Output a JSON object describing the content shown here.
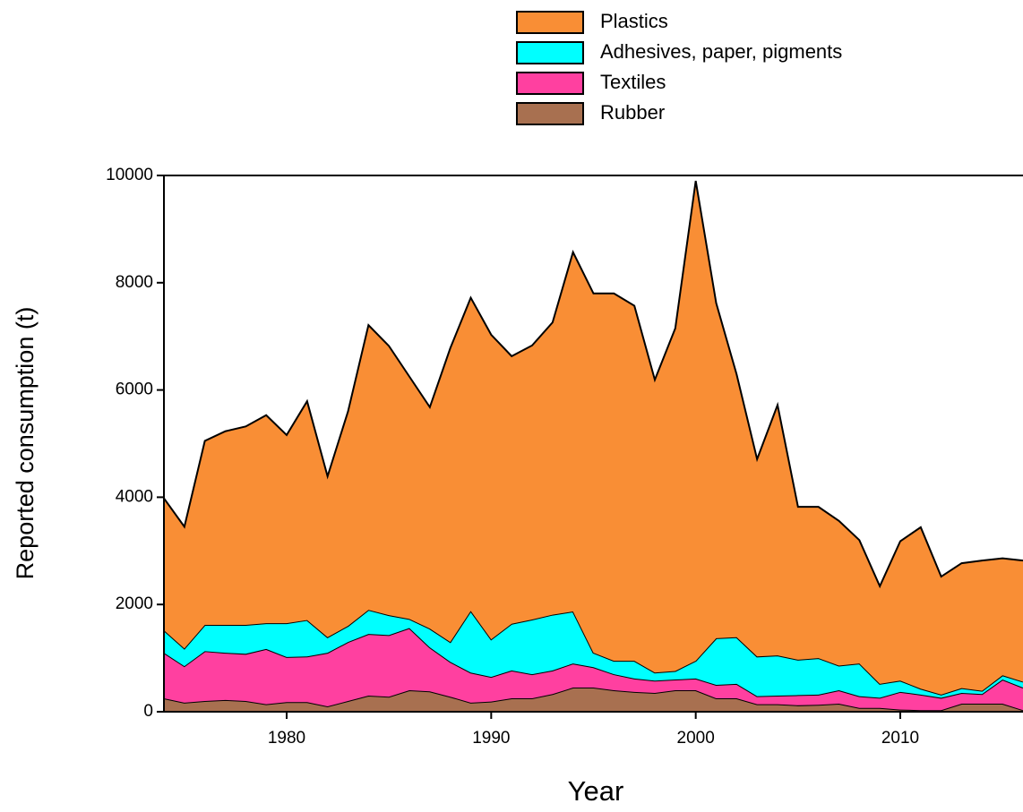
{
  "chart_data": {
    "type": "stacked_area",
    "x_label": "Year",
    "y_label": "Reported consumption (t)",
    "x": [
      1974,
      1975,
      1976,
      1977,
      1978,
      1979,
      1980,
      1981,
      1982,
      1983,
      1984,
      1985,
      1986,
      1987,
      1988,
      1989,
      1990,
      1991,
      1992,
      1993,
      1994,
      1995,
      1996,
      1997,
      1998,
      1999,
      2000,
      2001,
      2002,
      2003,
      2004,
      2005,
      2006,
      2007,
      2008,
      2009,
      2010,
      2011,
      2012,
      2013,
      2014,
      2015,
      2016
    ],
    "series": [
      {
        "name": "Plastics",
        "color": "#f98e35",
        "values": [
          2460,
          2270,
          3430,
          3610,
          3700,
          3880,
          3510,
          4080,
          3000,
          4000,
          5310,
          5020,
          4520,
          4130,
          5480,
          5840,
          5680,
          4990,
          5110,
          5450,
          6700,
          6700,
          6850,
          6620,
          5460,
          6390,
          8950,
          6250,
          4900,
          3680,
          4670,
          2850,
          2820,
          2700,
          2300,
          1820,
          2600,
          3010,
          2200,
          2330,
          2430,
          2180,
          2260
        ]
      },
      {
        "name": "Adhesives, paper, pigments",
        "color": "#00ffff",
        "values": [
          420,
          330,
          490,
          520,
          540,
          480,
          630,
          680,
          290,
          300,
          450,
          370,
          170,
          350,
          370,
          1150,
          700,
          870,
          1020,
          1040,
          970,
          270,
          250,
          330,
          150,
          160,
          330,
          870,
          870,
          740,
          750,
          660,
          680,
          460,
          610,
          260,
          210,
          110,
          60,
          90,
          60,
          80,
          110
        ]
      },
      {
        "name": "Textiles",
        "color": "#ff40a0",
        "values": [
          850,
          680,
          930,
          880,
          880,
          1030,
          840,
          850,
          1000,
          1100,
          1150,
          1150,
          1160,
          820,
          650,
          560,
          460,
          520,
          450,
          440,
          450,
          380,
          300,
          250,
          230,
          200,
          220,
          250,
          270,
          150,
          160,
          190,
          190,
          250,
          220,
          190,
          330,
          290,
          230,
          200,
          180,
          450,
          420
        ]
      },
      {
        "name": "Rubber",
        "color": "#a87050",
        "values": [
          250,
          170,
          200,
          220,
          200,
          140,
          180,
          180,
          100,
          200,
          300,
          280,
          400,
          380,
          280,
          170,
          190,
          250,
          250,
          330,
          450,
          450,
          400,
          370,
          350,
          400,
          400,
          250,
          250,
          140,
          140,
          120,
          130,
          150,
          70,
          70,
          40,
          30,
          30,
          150,
          150,
          150,
          30
        ]
      }
    ],
    "xlim": [
      1974,
      2016
    ],
    "ylim": [
      0,
      10000
    ],
    "xticks": [
      1980,
      1990,
      2000,
      2010
    ],
    "yticks": [
      0,
      2000,
      4000,
      6000,
      8000,
      10000
    ]
  }
}
